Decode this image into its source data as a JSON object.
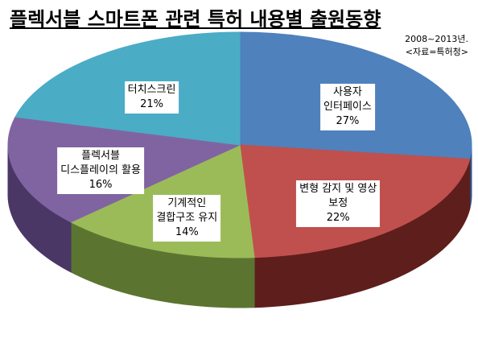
{
  "chart_data": {
    "type": "pie",
    "title": "플렉서블 스마트폰 관련 특허 내용별 출원동향",
    "subtitle": "2008~2013년.",
    "source": "<자료=특허청>",
    "categories": [
      "사용자\n인터페이스",
      "변형 감지 및 영상\n보정",
      "기계적인\n결합구조 유지",
      "플렉서블\n디스플레이의 활용",
      "터치스크린"
    ],
    "values": [
      27,
      22,
      14,
      16,
      21
    ],
    "value_labels": [
      "27%",
      "22%",
      "14%",
      "16%",
      "21%"
    ],
    "colors": [
      "#4f81bd",
      "#c0504d",
      "#9bbb59",
      "#8064a2",
      "#4bacc6"
    ],
    "side_colors": [
      "#2f5587",
      "#5e1e1c",
      "#5b7531",
      "#4a3766",
      "#2a7083"
    ]
  }
}
